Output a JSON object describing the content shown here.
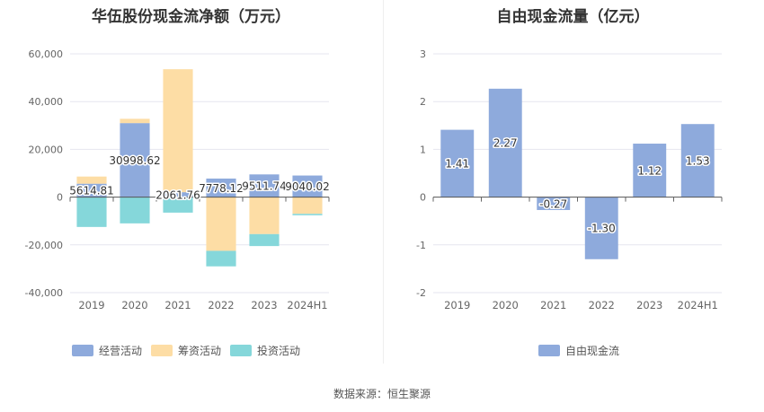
{
  "source": "数据来源：恒生聚源",
  "chart_data": [
    {
      "type": "bar",
      "stacked": true,
      "title": "华伍股份现金流净额（万元）",
      "categories": [
        "2019",
        "2020",
        "2021",
        "2022",
        "2023",
        "2024H1"
      ],
      "ylim": [
        -40000,
        60000
      ],
      "yticks": [
        -40000,
        -20000,
        0,
        20000,
        40000,
        60000
      ],
      "ytick_labels": [
        "-40,000",
        "-20,000",
        "0",
        "20,000",
        "40,000",
        "60,000"
      ],
      "grid": true,
      "legend_position": "bottom-left",
      "series": [
        {
          "name": "经营活动",
          "color": "#8eaadc",
          "values": [
            5614.81,
            30998.62,
            2061.76,
            7778.12,
            9511.74,
            9040.02
          ]
        },
        {
          "name": "筹资活动",
          "color": "#fddda5",
          "values": [
            3000,
            1800,
            51500,
            -22500,
            -15500,
            -7000
          ]
        },
        {
          "name": "投资活动",
          "color": "#85d7da",
          "values": [
            -12500,
            -11000,
            -6500,
            -6500,
            -5000,
            -600
          ]
        }
      ],
      "data_labels": [
        "5614.81",
        "30998.62",
        "2061.76",
        "7778.12",
        "9511.74",
        "9040.02"
      ]
    },
    {
      "type": "bar",
      "title": "自由现金流量（亿元）",
      "categories": [
        "2019",
        "2020",
        "2021",
        "2022",
        "2023",
        "2024H1"
      ],
      "ylim": [
        -2,
        3
      ],
      "yticks": [
        -2,
        -1,
        0,
        1,
        2,
        3
      ],
      "ytick_labels": [
        "-2",
        "-1",
        "0",
        "1",
        "2",
        "3"
      ],
      "grid": true,
      "legend_position": "bottom-center",
      "series": [
        {
          "name": "自由现金流",
          "color": "#8eaadc",
          "values": [
            1.41,
            2.27,
            -0.27,
            -1.3,
            1.12,
            1.53
          ]
        }
      ],
      "data_labels": [
        "1.41",
        "2.27",
        "-0.27",
        "-1.30",
        "1.12",
        "1.53"
      ]
    }
  ]
}
